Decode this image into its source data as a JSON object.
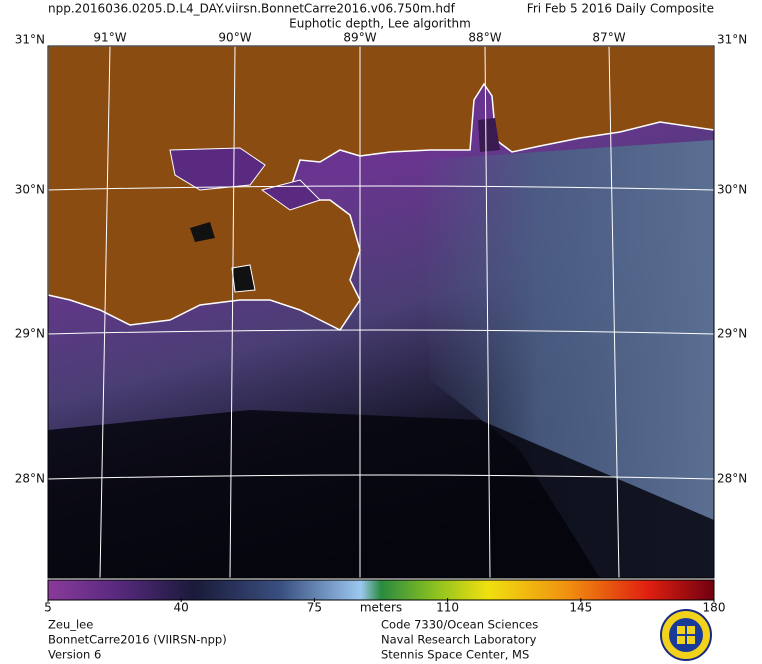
{
  "header": {
    "file": "npp.2016036.0205.D.L4_DAY.viirsn.BonnetCarre2016.v06.750m.hdf",
    "date": "Fri Feb  5 2016 Daily Composite",
    "product": "Euphotic depth, Lee algorithm"
  },
  "map": {
    "lon_labels": [
      "91°W",
      "90°W",
      "89°W",
      "88°W",
      "87°W"
    ],
    "lat_labels": [
      "31°N",
      "30°N",
      "29°N",
      "28°N"
    ]
  },
  "colorbar": {
    "ticks": [
      5,
      40,
      75,
      110,
      145,
      180
    ],
    "unit": "meters"
  },
  "footer": {
    "left": [
      "Zeu_lee",
      "BonnetCarre2016 (VIIRSN-npp)",
      "Version 6"
    ],
    "center": [
      "Code 7330/Ocean Sciences",
      "Naval Research Laboratory",
      "Stennis Space Center, MS"
    ]
  }
}
